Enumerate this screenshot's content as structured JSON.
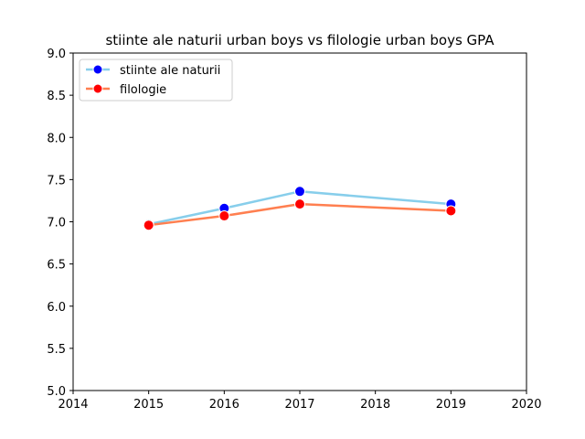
{
  "chart_data": {
    "type": "line",
    "title": "stiinte ale naturii urban boys vs filologie urban boys GPA",
    "xlabel": "",
    "ylabel": "",
    "xlim": [
      2014,
      2020
    ],
    "ylim": [
      5.0,
      9.0
    ],
    "xticks": [
      "2014",
      "2015",
      "2016",
      "2017",
      "2018",
      "2019",
      "2020"
    ],
    "yticks": [
      "5.0",
      "5.5",
      "6.0",
      "6.5",
      "7.0",
      "7.5",
      "8.0",
      "8.5",
      "9.0"
    ],
    "grid": false,
    "legend_position": "top-left",
    "series": [
      {
        "name": "stiinte ale naturii",
        "line_color": "#87ceeb",
        "marker_color": "#0000ff",
        "points": [
          {
            "x": 2015,
            "y": 6.97
          },
          {
            "x": 2016,
            "y": 7.16
          },
          {
            "x": 2017,
            "y": 7.36
          },
          {
            "x": 2019,
            "y": 7.21
          }
        ]
      },
      {
        "name": "filologie",
        "line_color": "#ff7f50",
        "marker_color": "#ff0000",
        "points": [
          {
            "x": 2015,
            "y": 6.96
          },
          {
            "x": 2016,
            "y": 7.07
          },
          {
            "x": 2017,
            "y": 7.21
          },
          {
            "x": 2019,
            "y": 7.13
          }
        ]
      }
    ]
  }
}
